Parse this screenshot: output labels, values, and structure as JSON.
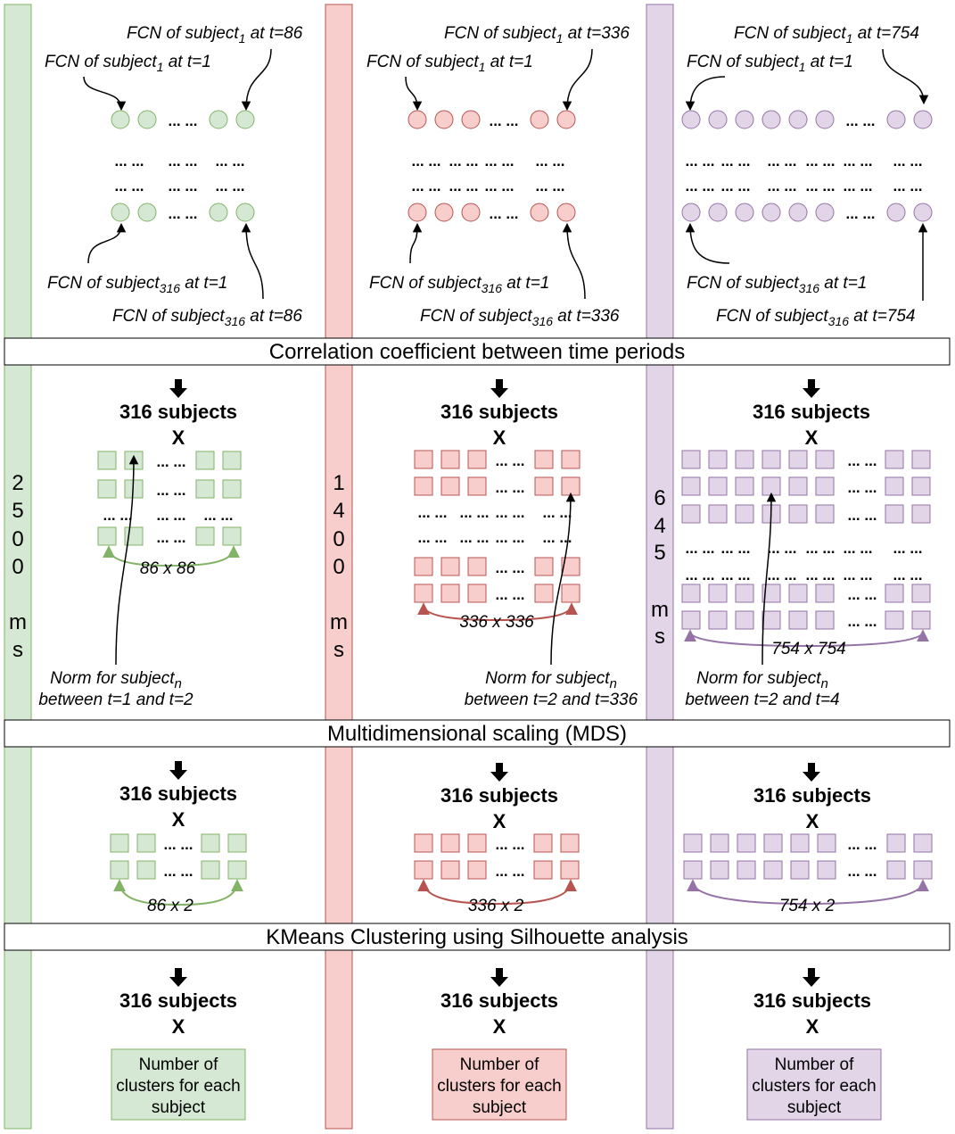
{
  "colors": {
    "green_fill": "#d5e8d4",
    "green_stroke": "#82b366",
    "red_fill": "#f8cecc",
    "red_stroke": "#b85450",
    "purple_fill": "#e1d5e7",
    "purple_stroke": "#9673a6"
  },
  "dots": "... ...",
  "banners": [
    "Correlation coefficient between time periods",
    "Multidimensional scaling (MDS)",
    "KMeans Clustering using Silhouette analysis"
  ],
  "columns": [
    {
      "color": "green",
      "bar_label": [
        "2",
        "5",
        "0",
        "0",
        "",
        "m",
        "s"
      ],
      "fcn": {
        "top_right": {
          "pre": "FCN of subject",
          "sub": "1",
          "post": " at t=86"
        },
        "top_left": {
          "pre": "FCN of subject",
          "sub": "1",
          "post": " at t=1"
        },
        "bottom_left": {
          "pre": "FCN of subject",
          "sub": "316",
          "post": " at t=1"
        },
        "bottom_right": {
          "pre": "FCN of subject",
          "sub": "316",
          "post": " at t=86"
        }
      },
      "header": "316 subjects",
      "x_mark": "X",
      "corr_dim": "86 x 86",
      "norm": {
        "pre": "Norm for subject",
        "sub": "n",
        "line2": "between t=1 and t=2"
      },
      "mds_dim": "86 x 2",
      "result": [
        "Number of",
        "clusters for each",
        "subject"
      ]
    },
    {
      "color": "red",
      "bar_label": [
        "1",
        "4",
        "0",
        "0",
        "",
        "m",
        "s"
      ],
      "fcn": {
        "top_right": {
          "pre": "FCN of subject",
          "sub": "1",
          "post": " at t=336"
        },
        "top_left": {
          "pre": "FCN of subject",
          "sub": "1",
          "post": " at t=1"
        },
        "bottom_left": {
          "pre": "FCN of subject",
          "sub": "316",
          "post": " at t=1"
        },
        "bottom_right": {
          "pre": "FCN of subject",
          "sub": "316",
          "post": " at t=336"
        }
      },
      "header": "316 subjects",
      "x_mark": "X",
      "corr_dim": "336 x 336",
      "norm": {
        "pre": "Norm for subject",
        "sub": "n",
        "line2": "between t=2 and t=336"
      },
      "mds_dim": "336 x 2",
      "result": [
        "Number of",
        "clusters for each",
        "subject"
      ]
    },
    {
      "color": "purple",
      "bar_label": [
        "6",
        "4",
        "5",
        "",
        "m",
        "s"
      ],
      "fcn": {
        "top_right": {
          "pre": "FCN of subject",
          "sub": "1",
          "post": " at t=754"
        },
        "top_left": {
          "pre": "FCN of subject",
          "sub": "1",
          "post": " at t=1"
        },
        "bottom_left": {
          "pre": "FCN of subject",
          "sub": "316",
          "post": " at t=1"
        },
        "bottom_right": {
          "pre": "FCN of subject",
          "sub": "316",
          "post": " at t=754"
        }
      },
      "header": "316 subjects",
      "x_mark": "X",
      "corr_dim": "754 x 754",
      "norm": {
        "pre": "Norm for subject",
        "sub": "n",
        "line2": "between t=2 and t=4"
      },
      "mds_dim": "754 x 2",
      "result": [
        "Number of",
        "clusters for each",
        "subject"
      ]
    }
  ]
}
